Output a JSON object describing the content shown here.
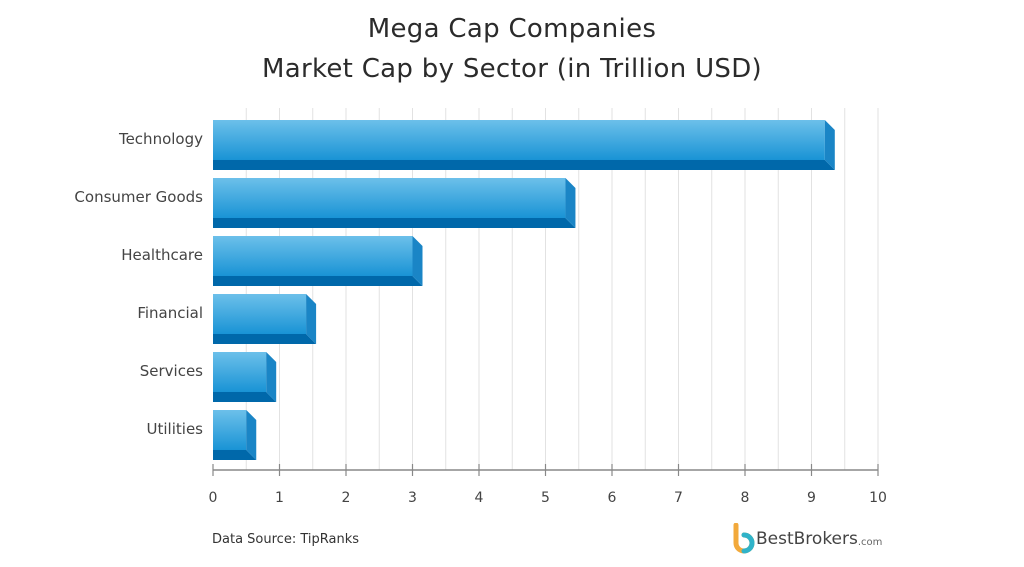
{
  "chart_data": {
    "type": "bar",
    "orientation": "horizontal",
    "title": "Mega Cap Companies",
    "subtitle": "Market Cap by Sector (in Trillion USD)",
    "categories": [
      "Technology",
      "Consumer Goods",
      "Healthcare",
      "Financial",
      "Services",
      "Utilities"
    ],
    "values": [
      9.2,
      5.3,
      3.0,
      1.4,
      0.8,
      0.5
    ],
    "xlim": [
      0,
      10
    ],
    "xticks": [
      "0",
      "1",
      "2",
      "3",
      "4",
      "5",
      "6",
      "7",
      "8",
      "9",
      "10"
    ],
    "grid": true,
    "colors": {
      "bar_top": "#5ab4e4",
      "bar_mid": "#1e96d6",
      "bar_bottom": "#0068aa",
      "bar_side": "#1a85c6",
      "grid": "#e2e2e2",
      "axis": "#888888"
    }
  },
  "footer": {
    "source": "Data Source: TipRanks",
    "logo": "BestBrokers",
    "logo_suffix": ".com"
  }
}
